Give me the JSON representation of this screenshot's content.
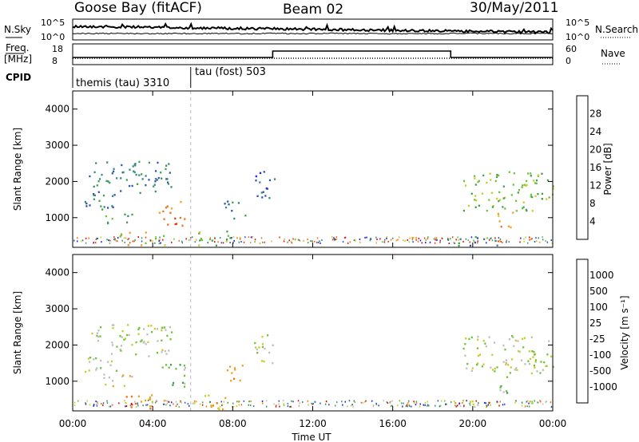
{
  "header": {
    "station": "Goose Bay (fitACF)",
    "beam": "Beam 02",
    "date": "30/May/2011"
  },
  "top_panels": {
    "nsky_label": "N.Sky",
    "nsky_ticks": [
      "10^5",
      "10^0"
    ],
    "nsearch_label": "N.Search",
    "nsearch_ticks": [
      "10^5",
      "10^0"
    ],
    "freq_label": "Freq.",
    "freq_unit": "[MHz]",
    "freq_ticks": [
      "18",
      "8"
    ],
    "nave_label": "Nave",
    "nave_ticks": [
      "60",
      "0"
    ],
    "cpid_label": "CPID",
    "cpid_segments": [
      {
        "label": "themis (tau) 3310",
        "start_hour": 0.0
      },
      {
        "label": "tau (fost) 503",
        "start_hour": 5.9
      }
    ]
  },
  "chart_data": [
    {
      "type": "heatmap",
      "name": "power",
      "ylabel": "Slant Range [km]",
      "ylim": [
        180,
        4500
      ],
      "yticks": [
        "1000",
        "2000",
        "3000",
        "4000"
      ],
      "xlim": [
        0,
        24
      ],
      "colorbar": {
        "label": "Power [dB]",
        "ticks": [
          "4",
          "8",
          "12",
          "16",
          "20",
          "24",
          "28"
        ],
        "colors": [
          "#1a22e0",
          "#2a57b4",
          "#37897d",
          "#3fa050",
          "#6ec23b",
          "#c8cc2a",
          "#f0a020",
          "#ef7018",
          "#e33a12",
          "#d80d0d"
        ]
      },
      "regions": [
        {
          "t0": 0.8,
          "t1": 5.0,
          "r0": 1700,
          "r1": 2600,
          "level": 2
        },
        {
          "t0": 0.5,
          "t1": 2.3,
          "r0": 1100,
          "r1": 1700,
          "level": 2
        },
        {
          "t0": 1.6,
          "t1": 3.0,
          "r0": 850,
          "r1": 1200,
          "level": 3
        },
        {
          "t0": 4.3,
          "t1": 5.6,
          "r0": 800,
          "r1": 1500,
          "level": 7
        },
        {
          "t0": 2.3,
          "t1": 4.7,
          "r0": 250,
          "r1": 650,
          "level": 5
        },
        {
          "t0": 6.0,
          "t1": 8.0,
          "r0": 250,
          "r1": 650,
          "level": 4
        },
        {
          "t0": 9.0,
          "t1": 10.1,
          "r0": 1500,
          "r1": 2300,
          "level": 1
        },
        {
          "t0": 7.5,
          "t1": 8.6,
          "r0": 1000,
          "r1": 1500,
          "level": 2
        },
        {
          "t0": 19.5,
          "t1": 24.0,
          "r0": 1200,
          "r1": 2300,
          "level": 4
        },
        {
          "t0": 21.2,
          "t1": 22.0,
          "r0": 700,
          "r1": 1200,
          "level": 6
        },
        {
          "t0": 19.0,
          "t1": 21.5,
          "r0": 250,
          "r1": 500,
          "level": 2
        }
      ]
    },
    {
      "type": "heatmap",
      "name": "velocity",
      "ylabel": "Slant Range [km]",
      "ylim": [
        180,
        4500
      ],
      "yticks": [
        "1000",
        "2000",
        "3000",
        "4000"
      ],
      "xlabel": "Time UT",
      "xlim": [
        0,
        24
      ],
      "xticks": [
        "00:00",
        "04:00",
        "08:00",
        "12:00",
        "16:00",
        "20:00",
        "00:00"
      ],
      "colorbar": {
        "label": "Velocity [m s⁻¹]",
        "ticks": [
          "1000",
          "500",
          "100",
          "25",
          "-25",
          "-100",
          "-500",
          "-1000"
        ],
        "colors": [
          "#1a22e0",
          "#2a57b4",
          "#37897d",
          "#3fa050",
          "#6ec23b",
          "#bebebe",
          "#c8cc2a",
          "#f0a020",
          "#ef7018",
          "#d80d0d"
        ]
      },
      "regions": [
        {
          "t0": 0.8,
          "t1": 5.0,
          "r0": 1700,
          "r1": 2600,
          "level": 5
        },
        {
          "t0": 0.5,
          "t1": 2.3,
          "r0": 1100,
          "r1": 1700,
          "level": 5
        },
        {
          "t0": 1.6,
          "t1": 3.0,
          "r0": 850,
          "r1": 1200,
          "level": 6
        },
        {
          "t0": 4.3,
          "t1": 5.6,
          "r0": 800,
          "r1": 1500,
          "level": 4
        },
        {
          "t0": 2.3,
          "t1": 4.7,
          "r0": 250,
          "r1": 650,
          "level": 7
        },
        {
          "t0": 6.0,
          "t1": 8.0,
          "r0": 250,
          "r1": 650,
          "level": 7
        },
        {
          "t0": 9.0,
          "t1": 10.1,
          "r0": 1500,
          "r1": 2300,
          "level": 5
        },
        {
          "t0": 7.5,
          "t1": 8.6,
          "r0": 1000,
          "r1": 1500,
          "level": 7
        },
        {
          "t0": 19.5,
          "t1": 24.0,
          "r0": 1200,
          "r1": 2300,
          "level": 5
        },
        {
          "t0": 21.2,
          "t1": 22.0,
          "r0": 700,
          "r1": 1200,
          "level": 4
        },
        {
          "t0": 19.0,
          "t1": 21.5,
          "r0": 250,
          "r1": 500,
          "level": 6
        }
      ]
    }
  ]
}
